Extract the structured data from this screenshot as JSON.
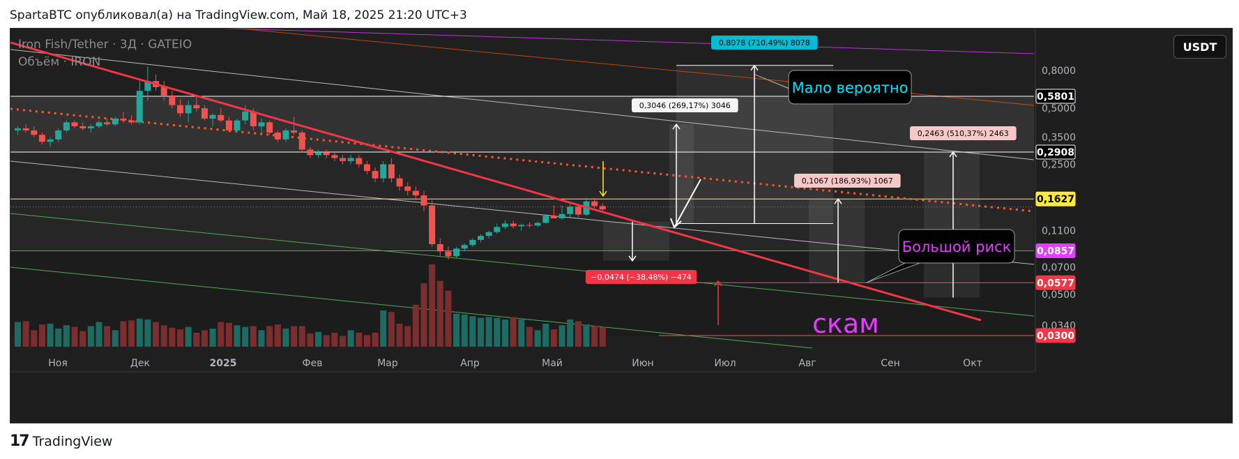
{
  "attribution": "SpartaBTC опубликовал(а) на TradingView.com, Май 18, 2025 21:20 UTC+3",
  "legend": {
    "symbol_line": "Iron Fish/Tether · 3Д · GATEIO",
    "volume_line": "Объём · IRON"
  },
  "currency_button": "USDT",
  "footer": {
    "brand": "TradingView"
  },
  "colors": {
    "up": "#26a69a",
    "down": "#ef5350",
    "trend": "#f23645",
    "yellow": "#ffeb3b",
    "magenta": "#e040fb"
  },
  "chart_data": {
    "type": "candlestick",
    "title": "Iron Fish/Tether · 3Д · GATEIO",
    "y_scale": "log",
    "ylim": [
      0.028,
      1.2
    ],
    "x_axis_labels": [
      "Ноя",
      "Дек",
      "2025",
      "Фев",
      "Мар",
      "Апр",
      "Май",
      "Июн",
      "Июл",
      "Авг",
      "Сен",
      "Окт"
    ],
    "y_axis_ticks": [
      "0,8000",
      "0,5000",
      "0,3500",
      "0,2500",
      "0,1100",
      "0,0700",
      "0,0500",
      "0,0340"
    ],
    "price_labels": [
      {
        "value": "0,5801",
        "style": "white"
      },
      {
        "value": "0,2908",
        "style": "white"
      },
      {
        "value": "0,1627",
        "style": "yellow"
      },
      {
        "value": "0,0857",
        "style": "magenta"
      },
      {
        "value": "0,0577",
        "style": "red"
      },
      {
        "value": "0,0300",
        "style": "red"
      }
    ],
    "measure_labels": [
      {
        "text": "0,8078 (710,49%) 8078",
        "style": "cyan"
      },
      {
        "text": "0,3046 (269,17%) 3046",
        "style": "white"
      },
      {
        "text": "0,2463 (510,37%) 2463",
        "style": "pink"
      },
      {
        "text": "0,1067 (186,93%) 1067",
        "style": "pink"
      },
      {
        "text": "−0,0474 (−38,48%) −474",
        "style": "red"
      }
    ],
    "annotations": [
      {
        "text": "Мало вероятно",
        "color": "#00e5ff"
      },
      {
        "text": "Большой риск",
        "color": "#e040fb"
      },
      {
        "text": "скам",
        "color": "#e040fb"
      }
    ],
    "candles": [
      [
        0.38,
        0.4,
        0.36,
        0.39
      ],
      [
        0.39,
        0.41,
        0.37,
        0.38
      ],
      [
        0.38,
        0.4,
        0.35,
        0.36
      ],
      [
        0.36,
        0.37,
        0.32,
        0.33
      ],
      [
        0.33,
        0.35,
        0.31,
        0.34
      ],
      [
        0.34,
        0.39,
        0.33,
        0.38
      ],
      [
        0.38,
        0.43,
        0.37,
        0.42
      ],
      [
        0.42,
        0.43,
        0.39,
        0.4
      ],
      [
        0.4,
        0.42,
        0.38,
        0.39
      ],
      [
        0.39,
        0.41,
        0.37,
        0.4
      ],
      [
        0.4,
        0.43,
        0.39,
        0.42
      ],
      [
        0.42,
        0.44,
        0.4,
        0.41
      ],
      [
        0.41,
        0.45,
        0.4,
        0.44
      ],
      [
        0.44,
        0.48,
        0.42,
        0.43
      ],
      [
        0.43,
        0.46,
        0.41,
        0.42
      ],
      [
        0.42,
        0.7,
        0.41,
        0.62
      ],
      [
        0.62,
        0.84,
        0.55,
        0.7
      ],
      [
        0.7,
        0.76,
        0.62,
        0.65
      ],
      [
        0.65,
        0.7,
        0.55,
        0.58
      ],
      [
        0.58,
        0.62,
        0.5,
        0.52
      ],
      [
        0.52,
        0.56,
        0.45,
        0.47
      ],
      [
        0.47,
        0.55,
        0.42,
        0.52
      ],
      [
        0.52,
        0.58,
        0.48,
        0.5
      ],
      [
        0.5,
        0.52,
        0.43,
        0.44
      ],
      [
        0.44,
        0.47,
        0.4,
        0.46
      ],
      [
        0.46,
        0.5,
        0.42,
        0.43
      ],
      [
        0.43,
        0.45,
        0.37,
        0.38
      ],
      [
        0.38,
        0.44,
        0.37,
        0.43
      ],
      [
        0.43,
        0.52,
        0.41,
        0.48
      ],
      [
        0.48,
        0.5,
        0.38,
        0.4
      ],
      [
        0.4,
        0.44,
        0.37,
        0.42
      ],
      [
        0.42,
        0.43,
        0.36,
        0.37
      ],
      [
        0.37,
        0.38,
        0.33,
        0.34
      ],
      [
        0.34,
        0.39,
        0.33,
        0.38
      ],
      [
        0.38,
        0.45,
        0.36,
        0.37
      ],
      [
        0.37,
        0.38,
        0.29,
        0.3
      ],
      [
        0.3,
        0.31,
        0.27,
        0.28
      ],
      [
        0.28,
        0.3,
        0.27,
        0.29
      ],
      [
        0.29,
        0.3,
        0.27,
        0.28
      ],
      [
        0.28,
        0.29,
        0.26,
        0.27
      ],
      [
        0.27,
        0.28,
        0.25,
        0.26
      ],
      [
        0.26,
        0.28,
        0.25,
        0.27
      ],
      [
        0.27,
        0.28,
        0.24,
        0.25
      ],
      [
        0.25,
        0.26,
        0.22,
        0.23
      ],
      [
        0.23,
        0.24,
        0.2,
        0.21
      ],
      [
        0.21,
        0.26,
        0.2,
        0.25
      ],
      [
        0.25,
        0.27,
        0.2,
        0.21
      ],
      [
        0.21,
        0.22,
        0.18,
        0.19
      ],
      [
        0.19,
        0.2,
        0.17,
        0.18
      ],
      [
        0.18,
        0.19,
        0.16,
        0.17
      ],
      [
        0.17,
        0.18,
        0.14,
        0.15
      ],
      [
        0.15,
        0.16,
        0.09,
        0.093
      ],
      [
        0.093,
        0.1,
        0.08,
        0.085
      ],
      [
        0.085,
        0.09,
        0.077,
        0.08
      ],
      [
        0.08,
        0.09,
        0.078,
        0.088
      ],
      [
        0.088,
        0.094,
        0.085,
        0.092
      ],
      [
        0.092,
        0.1,
        0.09,
        0.098
      ],
      [
        0.098,
        0.105,
        0.095,
        0.103
      ],
      [
        0.103,
        0.11,
        0.1,
        0.108
      ],
      [
        0.108,
        0.12,
        0.106,
        0.115
      ],
      [
        0.115,
        0.125,
        0.112,
        0.12
      ],
      [
        0.12,
        0.124,
        0.113,
        0.116
      ],
      [
        0.116,
        0.12,
        0.11,
        0.118
      ],
      [
        0.118,
        0.122,
        0.114,
        0.117
      ],
      [
        0.117,
        0.123,
        0.115,
        0.121
      ],
      [
        0.121,
        0.135,
        0.12,
        0.132
      ],
      [
        0.132,
        0.15,
        0.128,
        0.128
      ],
      [
        0.128,
        0.15,
        0.126,
        0.135
      ],
      [
        0.135,
        0.155,
        0.13,
        0.148
      ],
      [
        0.148,
        0.15,
        0.13,
        0.134
      ],
      [
        0.134,
        0.165,
        0.132,
        0.158
      ],
      [
        0.158,
        0.165,
        0.145,
        0.149
      ],
      [
        0.149,
        0.154,
        0.138,
        0.143
      ]
    ],
    "volumes": [
      30,
      31,
      20,
      27,
      28,
      22,
      26,
      24,
      19,
      25,
      30,
      25,
      20,
      31,
      32,
      34,
      33,
      30,
      26,
      23,
      21,
      24,
      17,
      20,
      22,
      30,
      29,
      26,
      24,
      25,
      20,
      25,
      27,
      22,
      25,
      25,
      16,
      18,
      14,
      17,
      13,
      20,
      17,
      14,
      17,
      44,
      42,
      28,
      25,
      51,
      77,
      100,
      80,
      68,
      40,
      39,
      37,
      35,
      36,
      35,
      33,
      36,
      33,
      24,
      20,
      28,
      21,
      26,
      33,
      31,
      27,
      25,
      24
    ]
  }
}
